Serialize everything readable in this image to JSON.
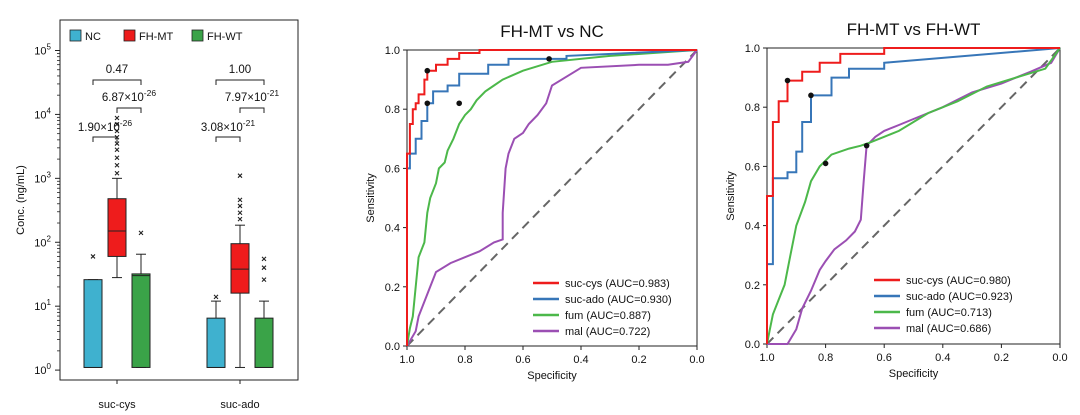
{
  "chart_data": [
    {
      "type": "box",
      "ylabel": "Conc. (ng/mL)",
      "yscale": "log",
      "ylim": [
        0.7,
        300000
      ],
      "yticks": [
        {
          "value": 1,
          "base": "10",
          "exp": "0"
        },
        {
          "value": 10,
          "base": "10",
          "exp": "1"
        },
        {
          "value": 100,
          "base": "10",
          "exp": "2"
        },
        {
          "value": 1000,
          "base": "10",
          "exp": "3"
        },
        {
          "value": 10000,
          "base": "10",
          "exp": "4"
        },
        {
          "value": 100000,
          "base": "10",
          "exp": "5"
        }
      ],
      "categories": [
        "suc-cys",
        "suc-ado"
      ],
      "legend": [
        {
          "name": "NC",
          "color": "#3fb1cf"
        },
        {
          "name": "FH-MT",
          "color": "#ee1c1c"
        },
        {
          "name": "FH-WT",
          "color": "#3aa348"
        }
      ],
      "series": [
        {
          "name": "NC",
          "boxes": [
            {
              "category": "suc-cys",
              "q1": 1.1,
              "median": 1.1,
              "q3": 26,
              "whisker_low": 1.1,
              "whisker_high": 26,
              "outliers": [
                60
              ]
            },
            {
              "category": "suc-ado",
              "q1": 1.1,
              "median": 1.1,
              "q3": 6.5,
              "whisker_low": 1.1,
              "whisker_high": 12,
              "outliers": [
                14
              ]
            }
          ]
        },
        {
          "name": "FH-MT",
          "boxes": [
            {
              "category": "suc-cys",
              "q1": 60,
              "median": 150,
              "q3": 480,
              "whisker_low": 28,
              "whisker_high": 1000,
              "outliers": [
                1200,
                1600,
                2100,
                2800,
                3500,
                4400,
                5500,
                7000,
                8800
              ]
            },
            {
              "category": "suc-ado",
              "q1": 16,
              "median": 38,
              "q3": 95,
              "whisker_low": 1.1,
              "whisker_high": 185,
              "outliers": [
                230,
                290,
                370,
                460,
                1100
              ]
            }
          ]
        },
        {
          "name": "FH-WT",
          "boxes": [
            {
              "category": "suc-cys",
              "q1": 1.1,
              "median": 30,
              "q3": 32,
              "whisker_low": 1.1,
              "whisker_high": 65,
              "outliers": [
                140
              ]
            },
            {
              "category": "suc-ado",
              "q1": 1.1,
              "median": 1.1,
              "q3": 6.5,
              "whisker_low": 1.1,
              "whisker_high": 12,
              "outliers": [
                26,
                40,
                55
              ]
            }
          ]
        }
      ],
      "significance": [
        {
          "category": "suc-cys",
          "pair": "NC vs FH-MT",
          "mantissa": "1.90",
          "exponent": "-26"
        },
        {
          "category": "suc-cys",
          "pair": "FH-MT vs FH-WT",
          "mantissa": "6.87",
          "exponent": "-26"
        },
        {
          "category": "suc-cys",
          "pair": "NC vs FH-WT",
          "mantissa": "0.47",
          "exponent": ""
        },
        {
          "category": "suc-ado",
          "pair": "NC vs FH-MT",
          "mantissa": "3.08",
          "exponent": "-21"
        },
        {
          "category": "suc-ado",
          "pair": "FH-MT vs FH-WT",
          "mantissa": "7.97",
          "exponent": "-21"
        },
        {
          "category": "suc-ado",
          "pair": "NC vs FH-WT",
          "mantissa": "1.00",
          "exponent": ""
        }
      ]
    },
    {
      "type": "line",
      "title": "FH-MT vs NC",
      "xlabel": "Specificity",
      "ylabel": "Sensitivity",
      "xlim": [
        1.0,
        0.0
      ],
      "ylim": [
        0.0,
        1.0
      ],
      "xticks": [
        "1.0",
        "0.8",
        "0.6",
        "0.4",
        "0.2",
        "0.0"
      ],
      "yticks": [
        "0.0",
        "0.2",
        "0.4",
        "0.6",
        "0.8",
        "1.0"
      ],
      "series": [
        {
          "name": "suc-cys",
          "legend": "suc-cys (AUC=0.983)",
          "color": "#ee1c1c",
          "x": [
            1.0,
            1.0,
            0.99,
            0.99,
            0.98,
            0.98,
            0.97,
            0.97,
            0.96,
            0.96,
            0.94,
            0.94,
            0.93,
            0.93,
            0.9,
            0.9,
            0.86,
            0.86,
            0.82,
            0.82,
            0.75,
            0.75,
            0.0
          ],
          "y": [
            0.0,
            0.65,
            0.65,
            0.75,
            0.75,
            0.8,
            0.8,
            0.82,
            0.82,
            0.85,
            0.85,
            0.9,
            0.9,
            0.93,
            0.93,
            0.95,
            0.95,
            0.97,
            0.97,
            0.99,
            0.99,
            1.0,
            1.0
          ]
        },
        {
          "name": "suc-ado",
          "legend": "suc-ado (AUC=0.930)",
          "color": "#3776b8",
          "x": [
            1.0,
            1.0,
            0.99,
            0.99,
            0.97,
            0.97,
            0.95,
            0.95,
            0.93,
            0.93,
            0.91,
            0.91,
            0.86,
            0.86,
            0.82,
            0.82,
            0.72,
            0.72,
            0.65,
            0.65,
            0.45,
            0.45,
            0.0
          ],
          "y": [
            0.0,
            0.6,
            0.6,
            0.65,
            0.65,
            0.7,
            0.7,
            0.76,
            0.76,
            0.82,
            0.82,
            0.86,
            0.86,
            0.88,
            0.88,
            0.92,
            0.92,
            0.95,
            0.95,
            0.97,
            0.97,
            0.98,
            1.0
          ]
        },
        {
          "name": "fum",
          "legend": "fum (AUC=0.887)",
          "color": "#4cb84a",
          "x": [
            1.0,
            0.99,
            0.98,
            0.97,
            0.96,
            0.94,
            0.93,
            0.92,
            0.9,
            0.89,
            0.87,
            0.86,
            0.84,
            0.82,
            0.8,
            0.78,
            0.76,
            0.73,
            0.7,
            0.67,
            0.6,
            0.5,
            0.3,
            0.0
          ],
          "y": [
            0.0,
            0.06,
            0.1,
            0.2,
            0.3,
            0.35,
            0.45,
            0.5,
            0.55,
            0.6,
            0.62,
            0.66,
            0.7,
            0.75,
            0.78,
            0.8,
            0.83,
            0.86,
            0.88,
            0.9,
            0.93,
            0.96,
            0.98,
            1.0
          ]
        },
        {
          "name": "mal",
          "legend": "mal (AUC=0.722)",
          "color": "#9b4fb3",
          "x": [
            1.0,
            0.97,
            0.96,
            0.92,
            0.9,
            0.85,
            0.8,
            0.75,
            0.7,
            0.67,
            0.67,
            0.66,
            0.65,
            0.63,
            0.6,
            0.58,
            0.55,
            0.52,
            0.5,
            0.4,
            0.2,
            0.1,
            0.03,
            0.0
          ],
          "y": [
            0.0,
            0.05,
            0.1,
            0.2,
            0.25,
            0.28,
            0.3,
            0.32,
            0.35,
            0.36,
            0.45,
            0.6,
            0.65,
            0.7,
            0.72,
            0.75,
            0.78,
            0.82,
            0.88,
            0.94,
            0.95,
            0.95,
            0.96,
            1.0
          ]
        }
      ],
      "cutoffs": [
        {
          "series": "suc-cys",
          "x": 0.93,
          "y": 0.93
        },
        {
          "series": "suc-ado",
          "x": 0.93,
          "y": 0.82
        },
        {
          "series": "fum",
          "x": 0.82,
          "y": 0.82
        },
        {
          "series": "mal",
          "x": 0.51,
          "y": 0.97
        }
      ]
    },
    {
      "type": "line",
      "title": "FH-MT vs FH-WT",
      "xlabel": "Specificity",
      "ylabel": "Sensitivity",
      "xlim": [
        1.0,
        0.0
      ],
      "ylim": [
        0.0,
        1.0
      ],
      "xticks": [
        "1.0",
        "0.8",
        "0.6",
        "0.4",
        "0.2",
        "0.0"
      ],
      "yticks": [
        "0.0",
        "0.2",
        "0.4",
        "0.6",
        "0.8",
        "1.0"
      ],
      "series": [
        {
          "name": "suc-cys",
          "legend": "suc-cys (AUC=0.980)",
          "color": "#ee1c1c",
          "x": [
            1.0,
            1.0,
            0.98,
            0.98,
            0.96,
            0.96,
            0.93,
            0.93,
            0.88,
            0.88,
            0.82,
            0.82,
            0.75,
            0.75,
            0.6,
            0.6,
            0.0
          ],
          "y": [
            0.0,
            0.5,
            0.5,
            0.75,
            0.75,
            0.82,
            0.82,
            0.89,
            0.89,
            0.92,
            0.92,
            0.95,
            0.95,
            0.98,
            0.98,
            1.0,
            1.0
          ]
        },
        {
          "name": "suc-ado",
          "legend": "suc-ado (AUC=0.923)",
          "color": "#3776b8",
          "x": [
            1.0,
            1.0,
            0.98,
            0.98,
            0.93,
            0.93,
            0.9,
            0.9,
            0.88,
            0.88,
            0.85,
            0.85,
            0.78,
            0.78,
            0.72,
            0.72,
            0.6,
            0.6,
            0.0
          ],
          "y": [
            0.0,
            0.27,
            0.27,
            0.56,
            0.56,
            0.58,
            0.58,
            0.65,
            0.65,
            0.75,
            0.75,
            0.84,
            0.84,
            0.9,
            0.9,
            0.93,
            0.93,
            0.95,
            1.0
          ]
        },
        {
          "name": "fum",
          "legend": "fum (AUC=0.713)",
          "color": "#4cb84a",
          "x": [
            1.0,
            0.99,
            0.98,
            0.96,
            0.94,
            0.92,
            0.9,
            0.87,
            0.85,
            0.82,
            0.78,
            0.72,
            0.68,
            0.65,
            0.6,
            0.55,
            0.5,
            0.45,
            0.35,
            0.25,
            0.15,
            0.05,
            0.0
          ],
          "y": [
            0.0,
            0.05,
            0.1,
            0.15,
            0.2,
            0.3,
            0.4,
            0.48,
            0.55,
            0.6,
            0.64,
            0.66,
            0.67,
            0.68,
            0.7,
            0.72,
            0.75,
            0.78,
            0.82,
            0.87,
            0.9,
            0.93,
            1.0
          ]
        },
        {
          "name": "mal",
          "legend": "mal (AUC=0.686)",
          "color": "#9b4fb3",
          "x": [
            1.0,
            0.93,
            0.9,
            0.88,
            0.85,
            0.82,
            0.8,
            0.77,
            0.73,
            0.7,
            0.68,
            0.67,
            0.66,
            0.63,
            0.6,
            0.55,
            0.5,
            0.4,
            0.3,
            0.2,
            0.1,
            0.03,
            0.0
          ],
          "y": [
            0.0,
            0.0,
            0.05,
            0.12,
            0.18,
            0.25,
            0.28,
            0.32,
            0.35,
            0.38,
            0.42,
            0.55,
            0.67,
            0.7,
            0.72,
            0.74,
            0.76,
            0.8,
            0.85,
            0.88,
            0.92,
            0.95,
            1.0
          ]
        }
      ],
      "cutoffs": [
        {
          "series": "suc-cys",
          "x": 0.93,
          "y": 0.89
        },
        {
          "series": "suc-ado",
          "x": 0.85,
          "y": 0.84
        },
        {
          "series": "fum",
          "x": 0.8,
          "y": 0.61
        },
        {
          "series": "mal",
          "x": 0.66,
          "y": 0.67
        }
      ]
    }
  ]
}
